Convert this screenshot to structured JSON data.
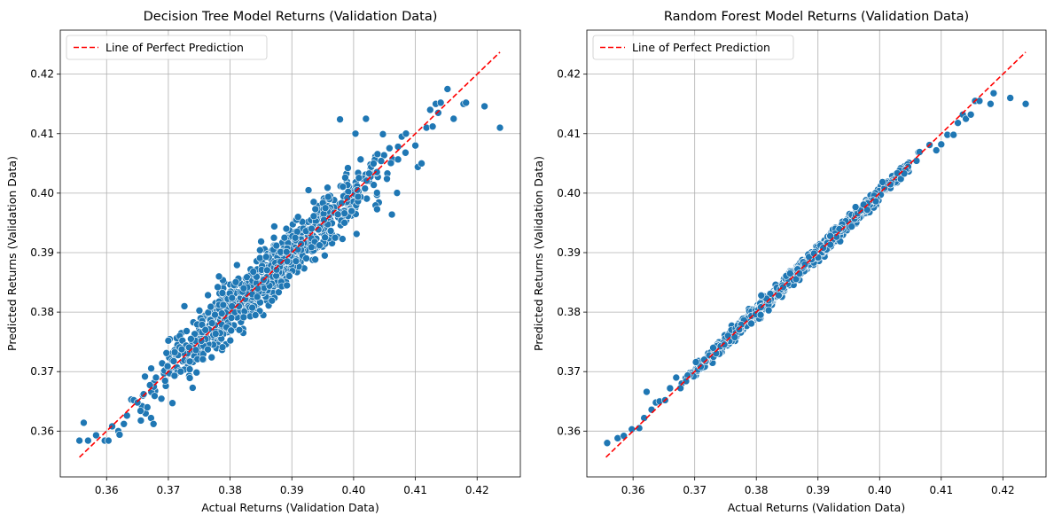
{
  "colors": {
    "point_fill": "#1f77b4",
    "point_edge": "#ffffff",
    "perfect_line": "#ff0000",
    "grid": "#b0b0b0",
    "axes": "#000000",
    "background": "#ffffff"
  },
  "chart_data": [
    {
      "type": "scatter",
      "title": "Decision Tree Model Returns (Validation Data)",
      "xlabel": "Actual Returns (Validation Data)",
      "ylabel": "Predicted Returns (Validation Data)",
      "xlim": [
        0.3525,
        0.427
      ],
      "ylim": [
        0.3523,
        0.4274
      ],
      "xticks": [
        0.36,
        0.37,
        0.38,
        0.39,
        0.4,
        0.41,
        0.42
      ],
      "xtick_labels": [
        "0.36",
        "0.37",
        "0.38",
        "0.39",
        "0.40",
        "0.41",
        "0.42"
      ],
      "yticks": [
        0.36,
        0.37,
        0.38,
        0.39,
        0.4,
        0.41,
        0.42
      ],
      "ytick_labels": [
        "0.36",
        "0.37",
        "0.38",
        "0.39",
        "0.40",
        "0.41",
        "0.42"
      ],
      "grid": true,
      "legend": {
        "position": "top-left",
        "entries": [
          "Line of Perfect Prediction"
        ]
      },
      "line": {
        "name": "Line of Perfect Prediction",
        "style": "dashed",
        "x": [
          0.3556,
          0.4237
        ],
        "y": [
          0.3556,
          0.4237
        ]
      },
      "series": [
        {
          "x": [
            0.3556,
            0.3563,
            0.357,
            0.3583,
            0.3597,
            0.3603,
            0.3609,
            0.3619,
            0.3628,
            0.3621,
            0.3633,
            0.364,
            0.3644,
            0.365,
            0.3655,
            0.366,
            0.3666,
            0.3672,
            0.3676,
            0.368,
            0.37,
            0.371,
            0.372,
            0.3726,
            0.376,
            0.3782,
            0.3803,
            0.3822,
            0.3841,
            0.3871,
            0.3892,
            0.391,
            0.3927,
            0.3952,
            0.397,
            0.3978,
            0.3982,
            0.4003,
            0.402,
            0.4038,
            0.4054,
            0.4062,
            0.4072,
            0.4084,
            0.41,
            0.4104,
            0.411,
            0.4118,
            0.4124,
            0.4128,
            0.4133,
            0.4137,
            0.4141,
            0.4152,
            0.4162,
            0.4178,
            0.4182,
            0.4212,
            0.4237
          ],
          "y": [
            0.3584,
            0.3614,
            0.3584,
            0.3593,
            0.3584,
            0.3584,
            0.3608,
            0.36,
            0.3612,
            0.3594,
            0.3626,
            0.3653,
            0.3652,
            0.3648,
            0.3634,
            0.3662,
            0.364,
            0.3622,
            0.3612,
            0.369,
            0.3752,
            0.3693,
            0.37,
            0.381,
            0.377,
            0.386,
            0.381,
            0.384,
            0.3795,
            0.3925,
            0.3845,
            0.396,
            0.4005,
            0.3955,
            0.3925,
            0.4124,
            0.3923,
            0.41,
            0.4125,
            0.3973,
            0.4024,
            0.3964,
            0.4078,
            0.4068,
            0.408,
            0.4044,
            0.405,
            0.411,
            0.414,
            0.4112,
            0.415,
            0.4135,
            0.4152,
            0.4175,
            0.4125,
            0.415,
            0.4152,
            0.4146,
            0.411
          ],
          "dense_band": {
            "x_start": 0.3648,
            "x_end": 0.4085,
            "slope": 0.981,
            "spread": 0.0023,
            "point_count": 900
          }
        }
      ]
    },
    {
      "type": "scatter",
      "title": "Random Forest Model Returns (Validation Data)",
      "xlabel": "Actual Returns (Validation Data)",
      "ylabel": "Predicted Returns (Validation Data)",
      "xlim": [
        0.3525,
        0.427
      ],
      "ylim": [
        0.3523,
        0.4274
      ],
      "xticks": [
        0.36,
        0.37,
        0.38,
        0.39,
        0.4,
        0.41,
        0.42
      ],
      "xtick_labels": [
        "0.36",
        "0.37",
        "0.38",
        "0.39",
        "0.40",
        "0.41",
        "0.42"
      ],
      "yticks": [
        0.36,
        0.37,
        0.38,
        0.39,
        0.4,
        0.41,
        0.42
      ],
      "ytick_labels": [
        "0.36",
        "0.37",
        "0.38",
        "0.39",
        "0.40",
        "0.41",
        "0.42"
      ],
      "grid": true,
      "legend": {
        "position": "top-left",
        "entries": [
          "Line of Perfect Prediction"
        ]
      },
      "line": {
        "name": "Line of Perfect Prediction",
        "style": "dashed",
        "x": [
          0.3556,
          0.4237
        ],
        "y": [
          0.3556,
          0.4237
        ]
      },
      "series": [
        {
          "x": [
            0.3558,
            0.3575,
            0.3585,
            0.3598,
            0.361,
            0.3618,
            0.3622,
            0.363,
            0.3637,
            0.3643,
            0.3652,
            0.366,
            0.367,
            0.3686,
            0.3702,
            0.373,
            0.3808,
            0.382,
            0.387,
            0.392,
            0.398,
            0.404,
            0.4081,
            0.4092,
            0.41,
            0.411,
            0.412,
            0.4127,
            0.4135,
            0.414,
            0.4148,
            0.4155,
            0.4162,
            0.418,
            0.4185,
            0.4212,
            0.4237
          ],
          "y": [
            0.358,
            0.3588,
            0.3592,
            0.3603,
            0.3605,
            0.3622,
            0.3666,
            0.3636,
            0.3648,
            0.365,
            0.3652,
            0.3672,
            0.369,
            0.3684,
            0.3716,
            0.374,
            0.3828,
            0.3803,
            0.3865,
            0.3928,
            0.3972,
            0.4033,
            0.4081,
            0.4072,
            0.4082,
            0.4098,
            0.4098,
            0.4118,
            0.4132,
            0.4125,
            0.4132,
            0.4155,
            0.4155,
            0.415,
            0.4168,
            0.416,
            0.415
          ],
          "dense_band": {
            "x_start": 0.366,
            "x_end": 0.4075,
            "slope": 0.998,
            "spread": 0.0006,
            "point_count": 900
          }
        }
      ]
    }
  ]
}
